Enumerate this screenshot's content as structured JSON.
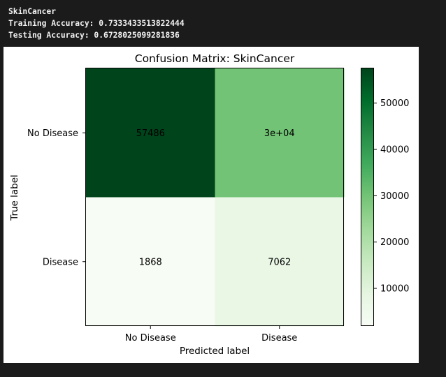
{
  "console": {
    "separator": "------------",
    "dataset": "SkinCancer",
    "training_accuracy": "Training Accuracy: 0.7333433513822444",
    "testing_accuracy": "Testing Accuracy: 0.6728025099281836"
  },
  "chart_data": {
    "type": "heatmap",
    "title": "Confusion Matrix: SkinCancer",
    "xlabel": "Predicted label",
    "ylabel": "True label",
    "x_categories": [
      "No Disease",
      "Disease"
    ],
    "y_categories": [
      "No Disease",
      "Disease"
    ],
    "values": [
      [
        57486,
        30000
      ],
      [
        1868,
        7062
      ]
    ],
    "cell_labels": [
      [
        "57486",
        "3e+04"
      ],
      [
        "1868",
        "7062"
      ]
    ],
    "colormap": "Greens",
    "color_range": [
      1868,
      57486
    ],
    "colorbar_ticks": [
      10000,
      20000,
      30000,
      40000,
      50000
    ],
    "colorbar_tick_labels": [
      "10000",
      "20000",
      "30000",
      "40000",
      "50000"
    ],
    "colors": {
      "min": "#f7fcf5",
      "max": "#00441b",
      "text_on_dark": "#f7fcf5",
      "text_on_light": "#00441b"
    }
  }
}
